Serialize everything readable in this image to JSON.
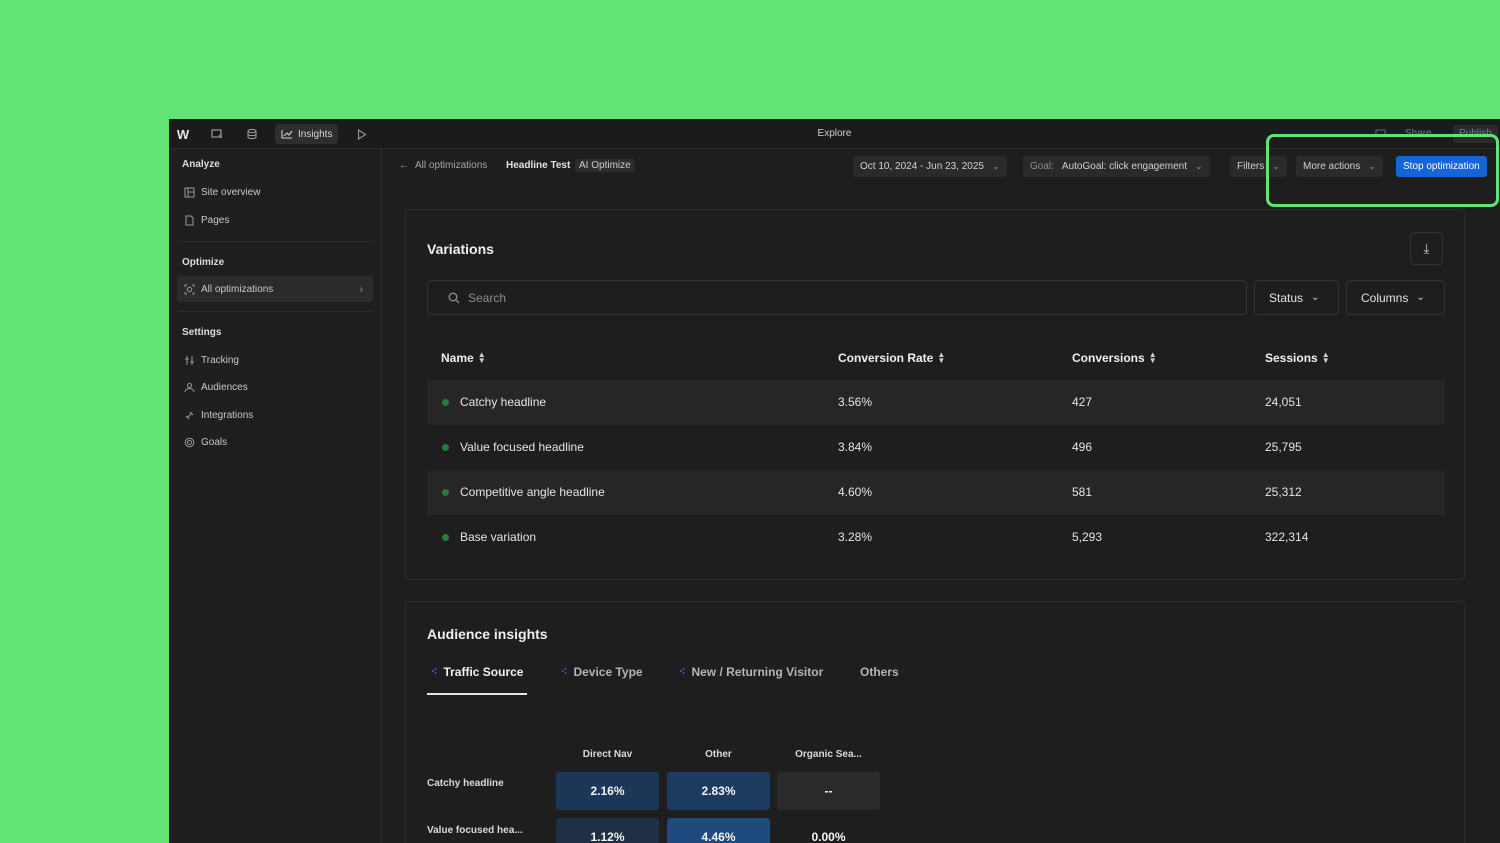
{
  "topbar": {
    "logo": "W",
    "insights_label": "Insights",
    "title": "Explore",
    "share_label": "Share",
    "publish_label": "Publish"
  },
  "sidebar": {
    "analyze_heading": "Analyze",
    "optimize_heading": "Optimize",
    "settings_heading": "Settings",
    "analyze_items": [
      {
        "label": "Site overview",
        "icon": "layout-icon"
      },
      {
        "label": "Pages",
        "icon": "page-icon"
      }
    ],
    "optimize_items": [
      {
        "label": "All optimizations",
        "icon": "optimize-icon"
      }
    ],
    "settings_items": [
      {
        "label": "Tracking",
        "icon": "tracking-icon"
      },
      {
        "label": "Audiences",
        "icon": "audiences-icon"
      },
      {
        "label": "Integrations",
        "icon": "integrations-icon"
      },
      {
        "label": "Goals",
        "icon": "goals-icon"
      }
    ]
  },
  "header": {
    "back_label": "All optimizations",
    "title": "Headline Test",
    "badge": "AI Optimize",
    "date_range": "Oct 10, 2024 - Jun 23, 2025",
    "goal_prefix": "Goal:",
    "goal_value": "AutoGoal: click engagement",
    "filters_label": "Filters",
    "more_actions_label": "More actions",
    "stop_label": "Stop optimization",
    "accent": "#1565d8"
  },
  "variations": {
    "title": "Variations",
    "search_placeholder": "Search",
    "status_label": "Status",
    "columns_label": "Columns",
    "headers": [
      "Name",
      "Conversion Rate",
      "Conversions",
      "Sessions"
    ],
    "rows": [
      {
        "name": "Catchy headline",
        "rate": "3.56%",
        "conversions": "427",
        "sessions": "24,051"
      },
      {
        "name": "Value focused headline",
        "rate": "3.84%",
        "conversions": "496",
        "sessions": "25,795"
      },
      {
        "name": "Competitive angle headline",
        "rate": "4.60%",
        "conversions": "581",
        "sessions": "25,312"
      },
      {
        "name": "Base variation",
        "rate": "3.28%",
        "conversions": "5,293",
        "sessions": "322,314"
      }
    ],
    "status_color": "#1f7f3d"
  },
  "audience": {
    "title": "Audience insights",
    "tabs": [
      "Traffic Source",
      "Device Type",
      "New / Returning Visitor",
      "Others"
    ],
    "columns": [
      "Direct Nav",
      "Other",
      "Organic Sea..."
    ],
    "rows": [
      {
        "label": "Catchy headline",
        "values": [
          "2.16%",
          "2.83%",
          "--"
        ]
      },
      {
        "label": "Value focused hea...",
        "values": [
          "1.12%",
          "4.46%",
          "0.00%"
        ]
      }
    ]
  }
}
